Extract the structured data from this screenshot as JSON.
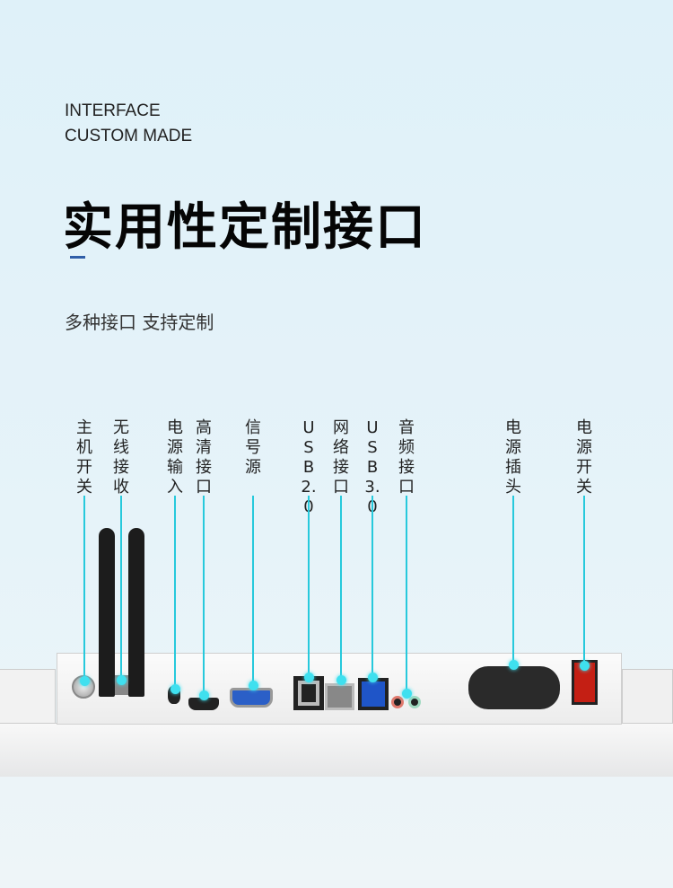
{
  "header": {
    "en_line1": "INTERFACE",
    "en_line2": "CUSTOM MADE",
    "title": "实用性定制接口",
    "subtitle": "多种接口 支持定制"
  },
  "accent_color": "#27c9dc",
  "labels": [
    {
      "id": "power-button",
      "text": "主机开关"
    },
    {
      "id": "wireless",
      "text": "无线接收"
    },
    {
      "id": "dc-in",
      "text": "电源输入"
    },
    {
      "id": "hdmi",
      "text": "高清接口"
    },
    {
      "id": "vga",
      "text": "信号源"
    },
    {
      "id": "usb2",
      "text": "USB2.0"
    },
    {
      "id": "lan",
      "text": "网络接口"
    },
    {
      "id": "usb3",
      "text": "USB3.0"
    },
    {
      "id": "audio",
      "text": "音频接口"
    },
    {
      "id": "ac-plug",
      "text": "电源插头"
    },
    {
      "id": "power-switch",
      "text": "电源开关"
    }
  ]
}
